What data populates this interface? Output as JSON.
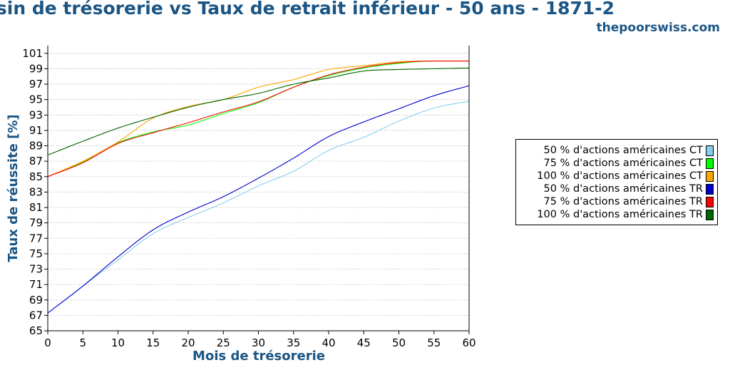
{
  "header": {
    "title": "ssin de trésorerie vs Taux de retrait inférieur - 50 ans - 1871-2",
    "source": "thepoorswiss.com"
  },
  "colors": {
    "title": "#1b5584",
    "grid": "#b0b0b0"
  },
  "chart_data": {
    "type": "line",
    "title": "ssin de trésorerie vs Taux de retrait inférieur - 50 ans - 1871-2",
    "xlabel": "Mois de trésorerie",
    "ylabel": "Taux de réussite [%]",
    "xlim": [
      0,
      60
    ],
    "ylim": [
      65,
      102
    ],
    "xticks": [
      0,
      5,
      10,
      15,
      20,
      25,
      30,
      35,
      40,
      45,
      50,
      55,
      60
    ],
    "yticks": [
      65,
      67,
      69,
      71,
      73,
      75,
      77,
      79,
      81,
      83,
      85,
      87,
      89,
      91,
      93,
      95,
      97,
      99,
      101
    ],
    "grid": "horizontal-dotted",
    "legend_position": "right",
    "x": [
      0,
      5,
      10,
      15,
      20,
      25,
      30,
      35,
      40,
      45,
      50,
      55,
      60
    ],
    "series": [
      {
        "name": "50 % d'actions américaines CT",
        "color": "#87ceeb",
        "values": [
          67.3,
          70.8,
          74.2,
          77.6,
          79.7,
          81.6,
          83.8,
          85.7,
          88.4,
          90.1,
          92.2,
          93.9,
          94.8
        ]
      },
      {
        "name": "75 % d'actions américaines CT",
        "color": "#00ff00",
        "values": [
          85.0,
          86.9,
          89.4,
          90.8,
          91.7,
          93.2,
          94.6,
          96.6,
          98.1,
          99.1,
          99.7,
          100.0,
          100.0
        ]
      },
      {
        "name": "100 % d'actions américaines CT",
        "color": "#ffa500",
        "values": [
          85.0,
          87.0,
          89.5,
          92.6,
          94.1,
          95.0,
          96.6,
          97.6,
          98.9,
          99.4,
          99.9,
          100.0,
          100.0
        ]
      },
      {
        "name": "50 % d'actions américaines TR",
        "color": "#0000cd",
        "values": [
          67.3,
          70.8,
          74.6,
          78.1,
          80.4,
          82.4,
          84.8,
          87.4,
          90.2,
          92.1,
          93.8,
          95.5,
          96.8
        ]
      },
      {
        "name": "75 % d'actions américaines TR",
        "color": "#ff0000",
        "values": [
          85.0,
          86.8,
          89.3,
          90.7,
          92.0,
          93.4,
          94.7,
          96.6,
          98.2,
          99.2,
          99.8,
          100.0,
          100.0
        ]
      },
      {
        "name": "100 % d'actions américaines TR",
        "color": "#006400",
        "values": [
          87.8,
          89.6,
          91.3,
          92.7,
          94.0,
          95.0,
          95.8,
          97.0,
          97.8,
          98.7,
          98.9,
          99.0,
          99.1
        ]
      }
    ]
  }
}
